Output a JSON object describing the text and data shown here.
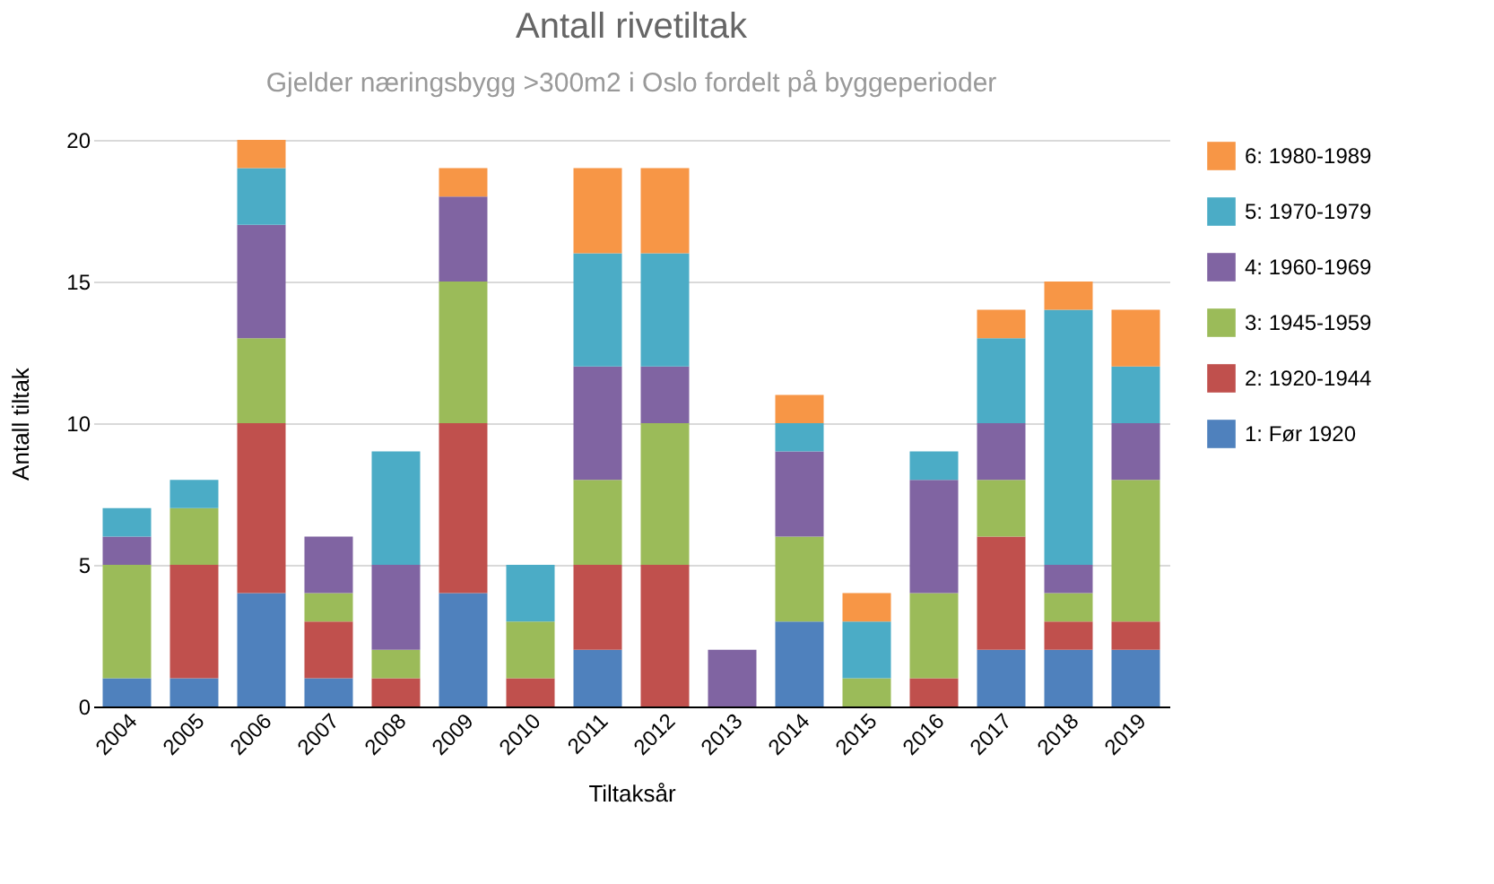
{
  "chart_data": {
    "type": "bar",
    "stacked": true,
    "title": "Antall rivetiltak",
    "subtitle": "Gjelder næringsbygg >300m2 i Oslo fordelt på byggeperioder",
    "xlabel": "Tiltaksår",
    "ylabel": "Antall tiltak",
    "categories": [
      "2004",
      "2005",
      "2006",
      "2007",
      "2008",
      "2009",
      "2010",
      "2011",
      "2012",
      "2013",
      "2014",
      "2015",
      "2016",
      "2017",
      "2018",
      "2019"
    ],
    "series": [
      {
        "name": "1: Før 1920",
        "color": "#4f81bd",
        "values": [
          1,
          1,
          4,
          1,
          0,
          4,
          0,
          2,
          0,
          0,
          3,
          0,
          0,
          2,
          2,
          2
        ]
      },
      {
        "name": "2: 1920-1944",
        "color": "#c0504d",
        "values": [
          0,
          4,
          6,
          2,
          1,
          6,
          1,
          3,
          5,
          0,
          0,
          0,
          1,
          4,
          1,
          1
        ]
      },
      {
        "name": "3: 1945-1959",
        "color": "#9bbb59",
        "values": [
          4,
          2,
          3,
          1,
          1,
          5,
          2,
          3,
          5,
          0,
          3,
          1,
          3,
          2,
          1,
          5
        ]
      },
      {
        "name": "4: 1960-1969",
        "color": "#8064a2",
        "values": [
          1,
          0,
          4,
          2,
          3,
          3,
          0,
          4,
          2,
          2,
          3,
          0,
          4,
          2,
          1,
          2
        ]
      },
      {
        "name": "5: 1970-1979",
        "color": "#4bacc6",
        "values": [
          1,
          1,
          2,
          0,
          4,
          0,
          2,
          4,
          4,
          0,
          1,
          2,
          1,
          3,
          9,
          2
        ]
      },
      {
        "name": "6: 1980-1989",
        "color": "#f79646",
        "values": [
          0,
          0,
          1,
          0,
          0,
          1,
          0,
          3,
          3,
          0,
          1,
          1,
          0,
          1,
          1,
          2
        ]
      }
    ],
    "ylim": [
      0,
      20
    ],
    "yticks": [
      0,
      5,
      10,
      15,
      20
    ],
    "grid": "y",
    "legend": "right"
  }
}
